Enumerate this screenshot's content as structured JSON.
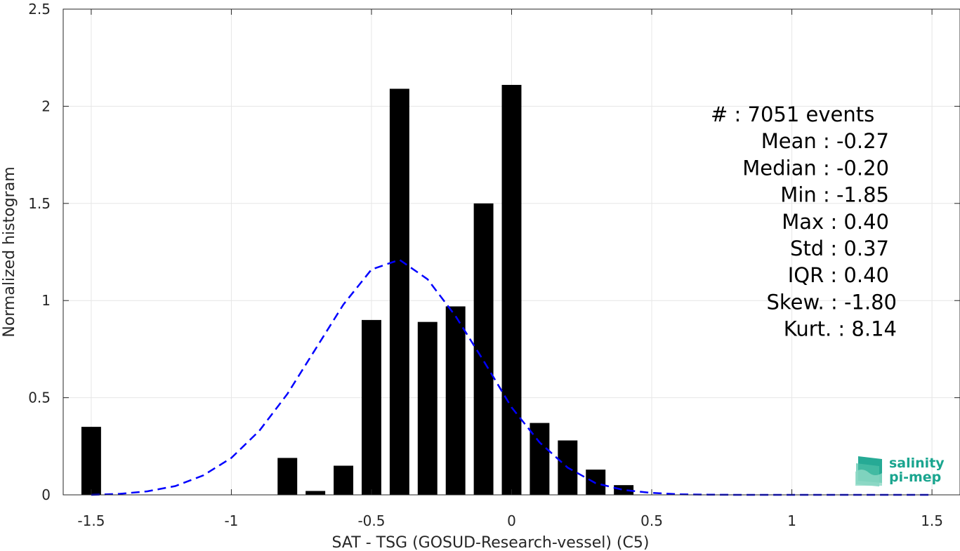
{
  "chart_data": {
    "type": "bar",
    "xlabel": "SAT - TSG (GOSUD-Research-vessel) (C5)",
    "ylabel": "Normalized histogram",
    "xlim": [
      -1.6,
      1.6
    ],
    "ylim": [
      0,
      2.5
    ],
    "xticks": [
      -1.5,
      -1,
      -0.5,
      0,
      0.5,
      1,
      1.5
    ],
    "xtick_labels": [
      "-1.5",
      "-1",
      "-0.5",
      "0",
      "0.5",
      "1",
      "1.5"
    ],
    "yticks": [
      0,
      0.5,
      1,
      1.5,
      2,
      2.5
    ],
    "ytick_labels": [
      "0",
      "0.5",
      "1",
      "1.5",
      "2",
      "2.5"
    ],
    "grid": true,
    "bar_width": 0.07,
    "bars": {
      "x": [
        -1.5,
        -0.8,
        -0.7,
        -0.6,
        -0.5,
        -0.4,
        -0.3,
        -0.2,
        -0.1,
        0.0,
        0.1,
        0.2,
        0.3,
        0.4
      ],
      "values": [
        0.35,
        0.19,
        0.02,
        0.15,
        0.9,
        2.09,
        0.89,
        0.97,
        1.5,
        2.11,
        0.37,
        0.28,
        0.13,
        0.05
      ],
      "color": "#000000"
    },
    "fit_curve": {
      "style": "dashed",
      "color": "#0000ff",
      "x": [
        -1.5,
        -1.4,
        -1.3,
        -1.2,
        -1.1,
        -1.0,
        -0.9,
        -0.8,
        -0.7,
        -0.6,
        -0.5,
        -0.4,
        -0.3,
        -0.2,
        -0.1,
        0.0,
        0.1,
        0.2,
        0.3,
        0.4,
        0.5,
        0.6,
        0.7,
        0.8,
        0.9,
        1.0,
        1.1,
        1.2,
        1.3,
        1.4,
        1.5
      ],
      "y": [
        0.0,
        0.005,
        0.018,
        0.045,
        0.1,
        0.19,
        0.33,
        0.52,
        0.75,
        0.98,
        1.16,
        1.21,
        1.11,
        0.92,
        0.69,
        0.45,
        0.27,
        0.14,
        0.06,
        0.025,
        0.01,
        0.003,
        0.001,
        0.0,
        0.0,
        0.0,
        0.0,
        0.0,
        0.0,
        0.0,
        0.0
      ]
    },
    "annotations": [
      {
        "label": "#  : 7051 events",
        "anchor": "left"
      },
      {
        "label": "Mean : -0.27",
        "anchor": "right"
      },
      {
        "label": "Median : -0.20",
        "anchor": "right"
      },
      {
        "label": "Min : -1.85",
        "anchor": "right"
      },
      {
        "label": "Max : 0.40",
        "anchor": "right"
      },
      {
        "label": "Std : 0.37",
        "anchor": "right"
      },
      {
        "label": "IQR : 0.40",
        "anchor": "right"
      },
      {
        "label": "Skew. : -1.80",
        "anchor": "right"
      },
      {
        "label": "Kurt. : 8.14",
        "anchor": "right"
      }
    ]
  },
  "logo": {
    "name": "salinity-pi-mep-logo",
    "line1": "salinity",
    "line2": "pi-mep",
    "color": "#1aa58f"
  }
}
